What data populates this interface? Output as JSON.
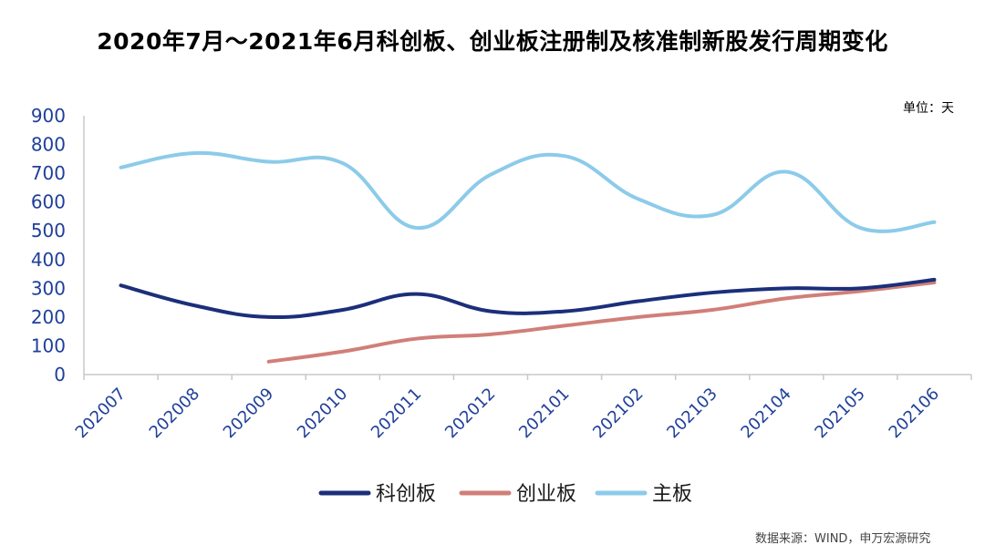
{
  "title": "2020年7月～2021年6月科创板、创业板注册制及核准制新股发行周期变化",
  "unit_label": "单位：天",
  "source": "数据来源：WIND，申万宏源研究",
  "chart_data": {
    "type": "line",
    "x": [
      "202007",
      "202008",
      "202009",
      "202010",
      "202011",
      "202012",
      "202101",
      "202102",
      "202103",
      "202104",
      "202105",
      "202106"
    ],
    "ylim": [
      0,
      900
    ],
    "yticks": [
      0,
      100,
      200,
      300,
      400,
      500,
      600,
      700,
      800,
      900
    ],
    "grid": false,
    "legend_position": "bottom",
    "series": [
      {
        "name": "科创板",
        "color": "#1b2f7a",
        "values": [
          310,
          240,
          200,
          225,
          280,
          220,
          220,
          255,
          285,
          300,
          300,
          330
        ]
      },
      {
        "name": "创业板",
        "color": "#d07f78",
        "values": [
          null,
          null,
          45,
          80,
          125,
          140,
          170,
          200,
          225,
          265,
          290,
          320
        ]
      },
      {
        "name": "主板",
        "color": "#8ccbe9",
        "values": [
          720,
          770,
          740,
          735,
          510,
          695,
          760,
          610,
          555,
          705,
          510,
          530
        ]
      }
    ]
  }
}
